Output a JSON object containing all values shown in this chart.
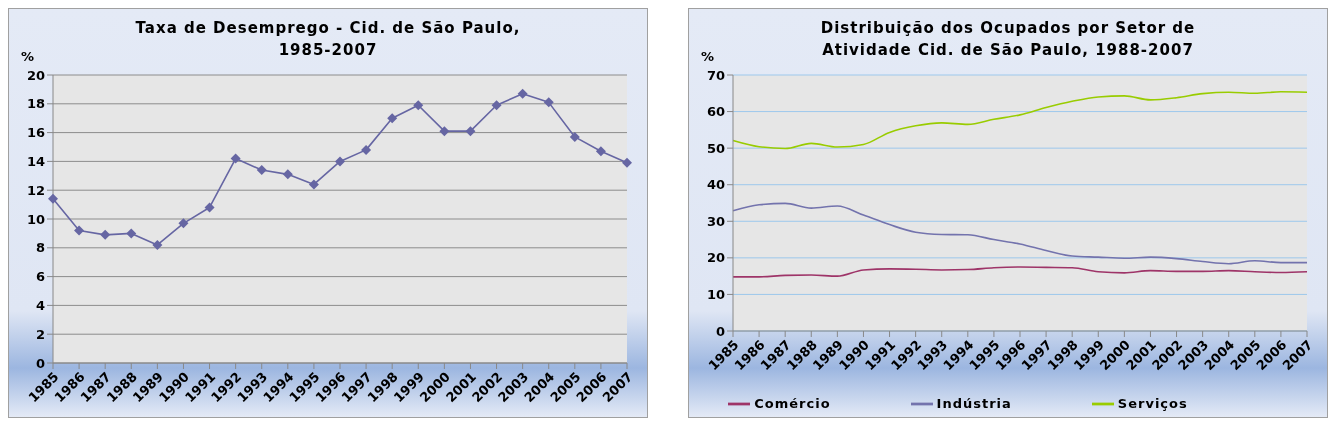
{
  "chart_data": [
    {
      "type": "line",
      "title": "Taxa de Desemprego - Cid. de São Paulo, 1985-2007",
      "ylabel": "%",
      "categories": [
        "1985",
        "1986",
        "1987",
        "1988",
        "1989",
        "1990",
        "1991",
        "1992",
        "1993",
        "1994",
        "1995",
        "1996",
        "1997",
        "1998",
        "1999",
        "2000",
        "2001",
        "2002",
        "2003",
        "2004",
        "2005",
        "2006",
        "2007"
      ],
      "series": [
        {
          "color": "#6666a3",
          "values": [
            11.4,
            9.2,
            8.9,
            9.0,
            8.2,
            9.7,
            10.8,
            14.2,
            13.4,
            13.1,
            12.4,
            14.0,
            14.8,
            17.0,
            17.9,
            16.1,
            16.1,
            17.9,
            18.7,
            18.1,
            15.7,
            14.7,
            13.9
          ]
        }
      ],
      "ylim": [
        0,
        20
      ],
      "yticks": [
        0,
        2,
        4,
        6,
        8,
        10,
        12,
        14,
        16,
        18,
        20
      ],
      "grid": "y",
      "marker": "diamond",
      "legend": false
    },
    {
      "type": "line",
      "title": "Distribuição dos Ocupados por Setor de Atividade Cid. de São Paulo, 1988-2007",
      "ylabel": "%",
      "categories": [
        "1985",
        "1986",
        "1987",
        "1988",
        "1989",
        "1990",
        "1991",
        "1992",
        "1993",
        "1994",
        "1995",
        "1996",
        "1997",
        "1998",
        "1999",
        "2000",
        "2001",
        "2002",
        "2003",
        "2004",
        "2005",
        "2006",
        "2007"
      ],
      "series": [
        {
          "name": "Indústria",
          "color": "#7373ad",
          "values": [
            32.9,
            34.5,
            34.9,
            33.6,
            34.2,
            31.7,
            29.1,
            27.0,
            26.4,
            26.3,
            25.0,
            23.8,
            22.0,
            20.5,
            20.2,
            19.9,
            20.2,
            19.8,
            19.0,
            18.4,
            19.2,
            18.7,
            18.7
          ]
        },
        {
          "name": "Comércio",
          "color": "#9e3468",
          "values": [
            14.8,
            14.8,
            15.2,
            15.3,
            15.0,
            16.7,
            17.0,
            16.9,
            16.7,
            16.8,
            17.3,
            17.5,
            17.4,
            17.3,
            16.2,
            15.9,
            16.5,
            16.3,
            16.3,
            16.5,
            16.2,
            16.0,
            16.2
          ]
        },
        {
          "name": "Serviços",
          "color": "#99cc00",
          "values": [
            52.1,
            50.4,
            49.9,
            51.3,
            50.3,
            51.0,
            54.3,
            56.1,
            56.9,
            56.5,
            57.9,
            59.1,
            61.1,
            62.8,
            64.0,
            64.3,
            63.2,
            63.8,
            64.9,
            65.3,
            65.0,
            65.4,
            65.3
          ]
        }
      ],
      "ylim": [
        0,
        70
      ],
      "yticks": [
        0,
        10,
        20,
        30,
        40,
        50,
        60,
        70
      ],
      "grid": "y",
      "marker": "none",
      "legend": "bottom"
    }
  ]
}
